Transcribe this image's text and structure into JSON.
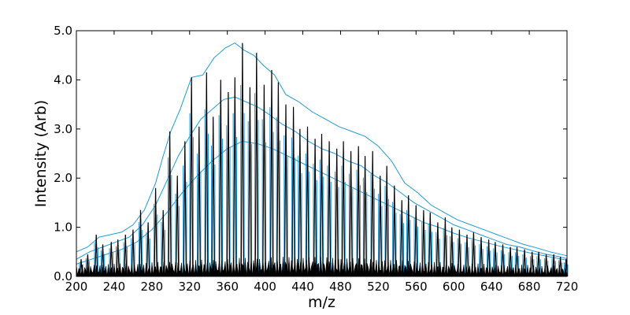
{
  "chart_data": {
    "type": "line",
    "title": "",
    "xlabel": "m/z",
    "ylabel": "Intensity (Arb)",
    "xlim": [
      200,
      720
    ],
    "ylim": [
      0,
      5.0
    ],
    "x_ticks": [
      200,
      240,
      280,
      320,
      360,
      400,
      440,
      480,
      520,
      560,
      600,
      640,
      680,
      720
    ],
    "x_tick_labels": [
      "200",
      "240",
      "280",
      "320",
      "360",
      "400",
      "440",
      "480",
      "520",
      "560",
      "600",
      "640",
      "680",
      "720"
    ],
    "y_ticks": [
      0,
      1,
      2,
      3,
      4,
      5
    ],
    "y_tick_labels": [
      "0.0",
      "1.0",
      "2.0",
      "3.0",
      "4.0",
      "5.0"
    ],
    "grid": false,
    "legend": "none",
    "series_colors": {
      "envelope": "#1f9ad6",
      "spectrum": "#000000"
    },
    "series": [
      {
        "role": "spectrum-peaks",
        "x": [
          205,
          212,
          221,
          228,
          237,
          244,
          252,
          260,
          268,
          276,
          284,
          292,
          299,
          307,
          315,
          322,
          330,
          338,
          345,
          353,
          361,
          368,
          376,
          384,
          391,
          399,
          407,
          414,
          422,
          430,
          437,
          445,
          453,
          460,
          468,
          476,
          483,
          491,
          499,
          506,
          514,
          522,
          529,
          537,
          545,
          552,
          560,
          568,
          575,
          583,
          591,
          598,
          606,
          614,
          621,
          629,
          637,
          644,
          652,
          660,
          667,
          675,
          683,
          690,
          698,
          706,
          713,
          719
        ],
        "y": [
          0.35,
          0.45,
          0.85,
          0.65,
          0.7,
          0.75,
          0.85,
          0.95,
          1.35,
          1.1,
          1.8,
          1.35,
          2.95,
          2.05,
          2.75,
          4.05,
          3.05,
          4.15,
          3.25,
          4.0,
          3.75,
          4.05,
          4.75,
          3.85,
          4.55,
          3.9,
          4.2,
          3.95,
          3.5,
          3.45,
          3.0,
          3.05,
          2.8,
          2.9,
          2.75,
          2.6,
          2.75,
          2.55,
          2.65,
          2.45,
          2.55,
          2.05,
          2.25,
          1.85,
          1.55,
          1.65,
          1.45,
          1.35,
          1.3,
          1.1,
          1.2,
          1.0,
          0.95,
          0.85,
          0.9,
          0.8,
          0.75,
          0.7,
          0.65,
          0.6,
          0.6,
          0.55,
          0.5,
          0.5,
          0.45,
          0.45,
          0.4,
          0.35
        ]
      },
      {
        "role": "envelope-upper",
        "x": [
          200,
          212,
          224,
          236,
          248,
          260,
          272,
          284,
          292,
          300,
          310,
          322,
          334,
          346,
          358,
          368,
          378,
          388,
          398,
          410,
          422,
          436,
          450,
          464,
          478,
          492,
          506,
          520,
          534,
          548,
          562,
          576,
          590,
          604,
          618,
          632,
          646,
          660,
          674,
          688,
          702,
          720
        ],
        "y": [
          0.5,
          0.6,
          0.8,
          0.85,
          0.9,
          1.05,
          1.35,
          1.9,
          2.45,
          2.95,
          3.4,
          4.05,
          4.1,
          4.45,
          4.65,
          4.75,
          4.6,
          4.5,
          4.3,
          4.1,
          3.7,
          3.55,
          3.35,
          3.2,
          3.05,
          2.95,
          2.85,
          2.65,
          2.35,
          1.9,
          1.7,
          1.45,
          1.3,
          1.15,
          1.05,
          0.95,
          0.85,
          0.75,
          0.65,
          0.58,
          0.5,
          0.42
        ]
      },
      {
        "role": "envelope-mid",
        "x": [
          200,
          214,
          228,
          242,
          256,
          270,
          284,
          296,
          308,
          320,
          332,
          344,
          356,
          368,
          380,
          392,
          404,
          418,
          432,
          446,
          460,
          474,
          488,
          502,
          516,
          530,
          544,
          558,
          572,
          586,
          600,
          614,
          628,
          642,
          656,
          670,
          684,
          698,
          712,
          720
        ],
        "y": [
          0.35,
          0.5,
          0.6,
          0.7,
          0.8,
          1.05,
          1.45,
          1.95,
          2.45,
          2.85,
          3.2,
          3.4,
          3.6,
          3.65,
          3.55,
          3.45,
          3.3,
          3.1,
          2.95,
          2.75,
          2.6,
          2.5,
          2.35,
          2.25,
          2.05,
          1.9,
          1.7,
          1.5,
          1.35,
          1.2,
          1.05,
          0.95,
          0.85,
          0.75,
          0.65,
          0.6,
          0.52,
          0.45,
          0.4,
          0.36
        ]
      },
      {
        "role": "envelope-low",
        "x": [
          200,
          216,
          232,
          248,
          264,
          280,
          296,
          312,
          328,
          344,
          360,
          376,
          392,
          408,
          424,
          440,
          456,
          472,
          488,
          504,
          520,
          536,
          552,
          568,
          584,
          600,
          616,
          632,
          648,
          664,
          680,
          696,
          712,
          720
        ],
        "y": [
          0.25,
          0.35,
          0.45,
          0.55,
          0.7,
          0.95,
          1.3,
          1.7,
          2.05,
          2.35,
          2.6,
          2.75,
          2.7,
          2.6,
          2.45,
          2.3,
          2.15,
          2.0,
          1.85,
          1.7,
          1.55,
          1.4,
          1.25,
          1.1,
          1.0,
          0.88,
          0.78,
          0.7,
          0.62,
          0.55,
          0.48,
          0.42,
          0.36,
          0.33
        ]
      }
    ]
  }
}
